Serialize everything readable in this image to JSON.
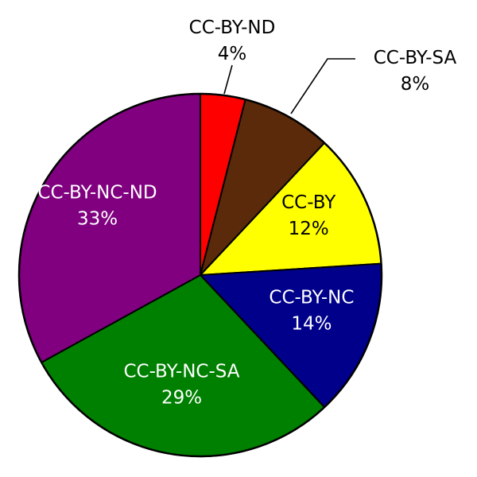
{
  "chart_data": {
    "type": "pie",
    "categories": [
      "CC-BY-ND",
      "CC-BY-SA",
      "CC-BY",
      "CC-BY-NC",
      "CC-BY-NC-SA",
      "CC-BY-NC-ND"
    ],
    "values": [
      4,
      8,
      12,
      14,
      29,
      33
    ],
    "value_labels": [
      "4%",
      "8%",
      "12%",
      "14%",
      "29%",
      "33%"
    ],
    "unit": "%",
    "colors": [
      "#ff0000",
      "#5a2a0a",
      "#ffff00",
      "#00008b",
      "#008000",
      "#800080"
    ],
    "label_colors": [
      "#000000",
      "#000000",
      "#000000",
      "#ffffff",
      "#ffffff",
      "#ffffff"
    ],
    "label_placement": [
      "outside",
      "outside",
      "inside",
      "inside",
      "inside",
      "inside"
    ],
    "start_angle": "top (12 o'clock), clockwise",
    "legend": "none",
    "title": ""
  },
  "backdrop": {
    "color": "#ffffff"
  }
}
